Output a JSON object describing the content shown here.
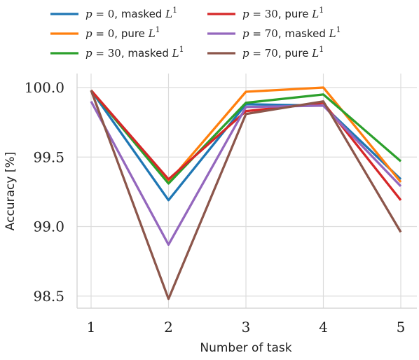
{
  "chart_data": {
    "type": "line",
    "xlabel": "Number of task",
    "ylabel": "Accuracy [%]",
    "x": [
      1,
      2,
      3,
      4,
      5
    ],
    "xticks": [
      "1",
      "2",
      "3",
      "4",
      "5"
    ],
    "yticks": [
      "98.5",
      "99.0",
      "99.5",
      "100.0"
    ],
    "ylim": [
      98.45,
      100.05
    ],
    "grid": true,
    "legend_position": "top",
    "series": [
      {
        "p": "0",
        "method": "masked",
        "color": "#1f77b4",
        "values": [
          99.98,
          99.19,
          99.88,
          99.87,
          99.34
        ]
      },
      {
        "p": "0",
        "method": "pure",
        "color": "#ff7f0e",
        "values": [
          99.98,
          99.32,
          99.97,
          100.0,
          99.32
        ]
      },
      {
        "p": "30",
        "method": "masked",
        "color": "#2ca02c",
        "values": [
          99.98,
          99.31,
          99.89,
          99.95,
          99.47
        ]
      },
      {
        "p": "30",
        "method": "pure",
        "color": "#d62728",
        "values": [
          99.98,
          99.34,
          99.83,
          99.89,
          99.19
        ]
      },
      {
        "p": "70",
        "method": "masked",
        "color": "#9467bd",
        "values": [
          99.9,
          98.87,
          99.86,
          99.87,
          99.29
        ]
      },
      {
        "p": "70",
        "method": "pure",
        "color": "#8c564b",
        "values": [
          99.98,
          98.48,
          99.81,
          99.9,
          98.96
        ]
      }
    ]
  }
}
